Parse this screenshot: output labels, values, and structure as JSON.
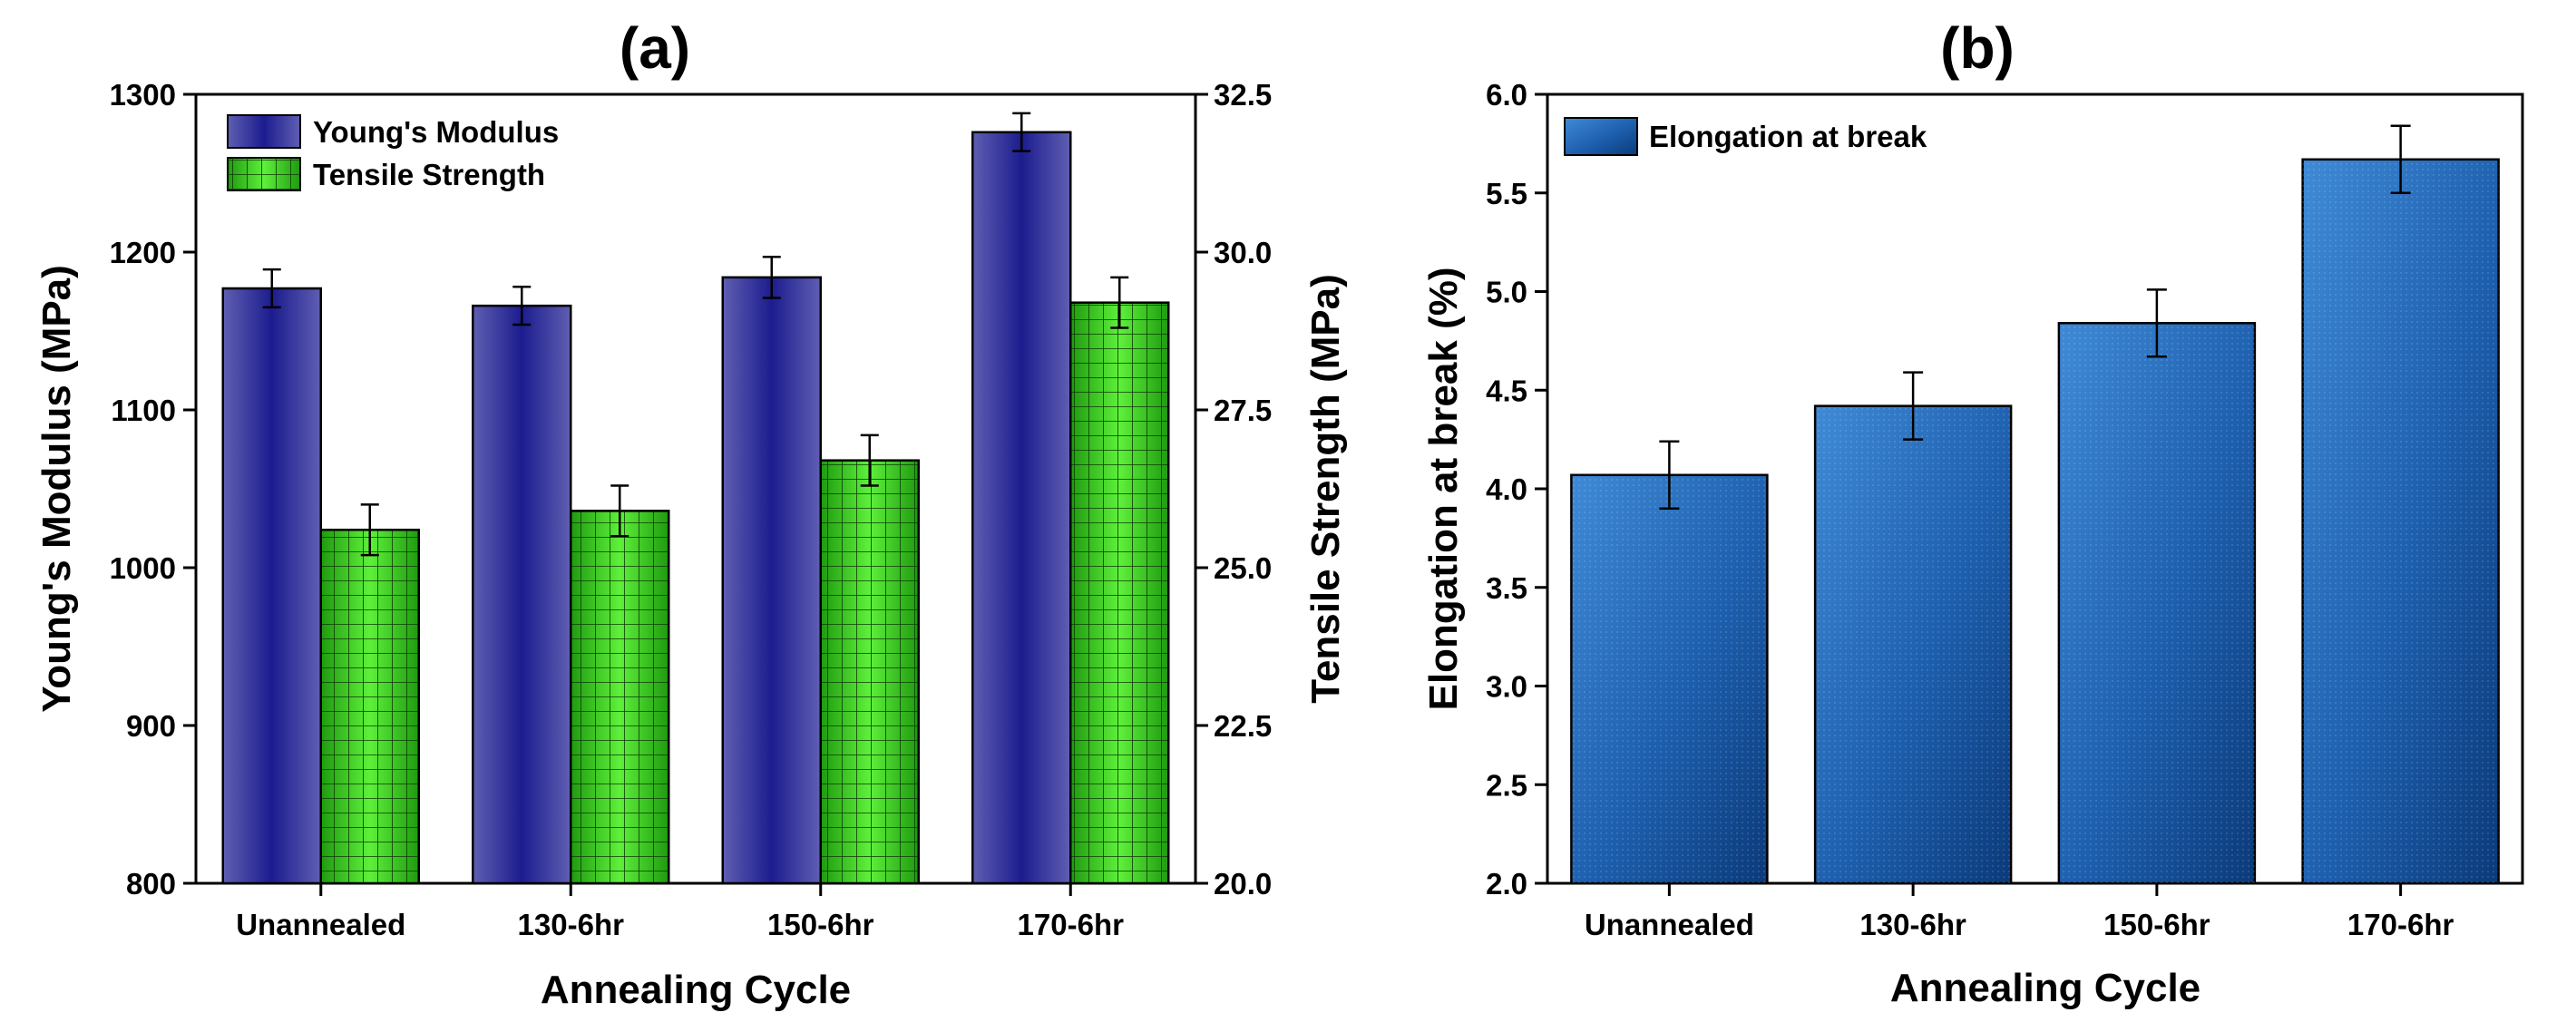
{
  "chart_data": [
    {
      "panel": "(a)",
      "type": "bar",
      "title": "(a)",
      "xlabel": "Annealing Cycle",
      "ylabel": "Young's Modulus (MPa)",
      "y2label": "Tensile Strength (MPa)",
      "categories": [
        "Unannealed",
        "130-6hr",
        "150-6hr",
        "170-6hr"
      ],
      "ylim": [
        800,
        1300
      ],
      "yticks": [
        800,
        900,
        1000,
        1100,
        1200,
        1300
      ],
      "y2lim": [
        20.0,
        32.5
      ],
      "y2ticks": [
        20.0,
        22.5,
        25.0,
        27.5,
        30.0,
        32.5
      ],
      "legend_position": "top-left",
      "series": [
        {
          "name": "Young's Modulus",
          "axis": "left",
          "values": [
            1177,
            1166,
            1184,
            1276
          ],
          "errors": [
            12,
            12,
            13,
            12
          ],
          "color": "#4a4aa6"
        },
        {
          "name": "Tensile Strength",
          "axis": "right",
          "values": [
            25.6,
            25.9,
            26.7,
            29.2
          ],
          "errors": [
            0.4,
            0.4,
            0.4,
            0.4
          ],
          "color": "#33cc1a"
        }
      ]
    },
    {
      "panel": "(b)",
      "type": "bar",
      "title": "(b)",
      "xlabel": "Annealing Cycle",
      "ylabel": "Elongation at break (%)",
      "categories": [
        "Unannealed",
        "130-6hr",
        "150-6hr",
        "170-6hr"
      ],
      "ylim": [
        2.0,
        6.0
      ],
      "yticks": [
        2.0,
        2.5,
        3.0,
        3.5,
        4.0,
        4.5,
        5.0,
        5.5,
        6.0
      ],
      "legend_position": "top-left",
      "series": [
        {
          "name": "Elongation at break",
          "values": [
            4.07,
            4.42,
            4.84,
            5.67
          ],
          "errors": [
            0.17,
            0.17,
            0.17,
            0.17
          ],
          "color": "#1f5fa8"
        }
      ]
    }
  ]
}
